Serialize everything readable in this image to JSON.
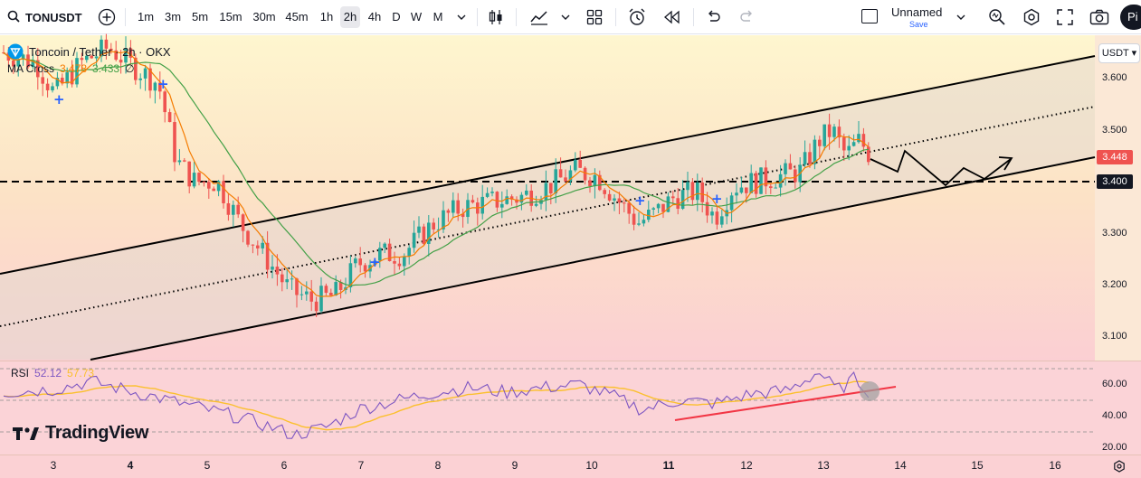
{
  "toolbar": {
    "symbol": "TONUSDT",
    "timeframes": [
      "1m",
      "3m",
      "5m",
      "15m",
      "30m",
      "45m",
      "1h",
      "2h",
      "4h",
      "D",
      "W",
      "M"
    ],
    "active_timeframe": "2h",
    "layout_name": "Unnamed",
    "layout_save": "Save",
    "avatar_initials": "Pi"
  },
  "legend": {
    "title": "Toncoin / Tether · 2h · OKX",
    "indicator_name": "MA Cross",
    "ma1_value": "3.478",
    "ma2_value": "3.433",
    "ma_suffix": "∅"
  },
  "rsi": {
    "name": "RSI",
    "value1": "52.12",
    "value2": "57.73"
  },
  "price_axis": {
    "currency": "USDT",
    "labels": [
      "3.600",
      "3.500",
      "3.400",
      "3.300",
      "3.200",
      "3.100"
    ],
    "current_price": "3.448",
    "level_price": "3.400"
  },
  "rsi_axis": {
    "labels": [
      "60.00",
      "40.00",
      "20.00"
    ]
  },
  "time_axis": {
    "labels": [
      "3",
      "4",
      "5",
      "6",
      "7",
      "8",
      "9",
      "10",
      "11",
      "12",
      "13",
      "14",
      "15",
      "16"
    ],
    "bold": [
      "4",
      "11"
    ]
  },
  "brand": {
    "name": "TradingView"
  },
  "colors": {
    "up": "#26a69a",
    "down": "#ef5350",
    "ma_fast": "#f57c00",
    "ma_slow": "#43a047",
    "rsi": "#7e57c2",
    "rsi_ma": "#fbc02d",
    "trendline": "#f23645",
    "accent": "#2962ff"
  }
}
